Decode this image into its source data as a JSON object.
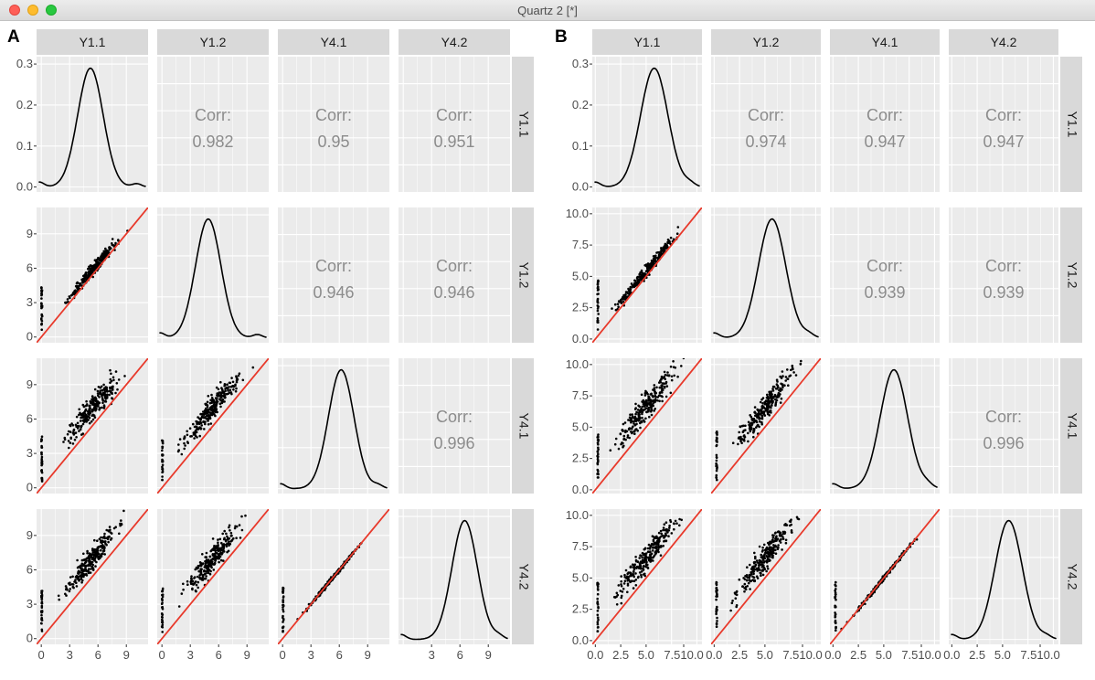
{
  "window": {
    "title": "Quartz 2 [*]"
  },
  "chart_data": [
    {
      "panel_label": "A",
      "type": "scatterplot-matrix",
      "variables": [
        "Y1.1",
        "Y1.2",
        "Y4.1",
        "Y4.2"
      ],
      "diag_ylim": [
        0,
        0.3
      ],
      "diag_yticks": [
        "0.0",
        "0.1",
        "0.2",
        "0.3"
      ],
      "axis_range": [
        -0.5,
        11.3
      ],
      "ticks": [
        0,
        3,
        6,
        9
      ],
      "diag4_ticks": [
        3,
        6,
        9
      ],
      "diag_peaks": [
        5.2,
        4.9,
        6.2,
        6.5
      ],
      "corr_label": "Corr:",
      "correlations": [
        {
          "row": 0,
          "col": 1,
          "value": "0.982"
        },
        {
          "row": 0,
          "col": 2,
          "value": "0.95"
        },
        {
          "row": 0,
          "col": 3,
          "value": "0.951"
        },
        {
          "row": 1,
          "col": 2,
          "value": "0.946"
        },
        {
          "row": 1,
          "col": 3,
          "value": "0.946"
        },
        {
          "row": 2,
          "col": 3,
          "value": "0.996"
        }
      ]
    },
    {
      "panel_label": "B",
      "type": "scatterplot-matrix",
      "variables": [
        "Y1.1",
        "Y1.2",
        "Y4.1",
        "Y4.2"
      ],
      "diag_ylim": [
        0,
        0.3
      ],
      "diag_yticks": [
        "0.0",
        "0.1",
        "0.2",
        "0.3"
      ],
      "axis_range": [
        -0.3,
        10.5
      ],
      "ticks": [
        "0.0",
        "2.5",
        "5.0",
        "7.5",
        "10.0"
      ],
      "bottom_ticks": [
        "0.0",
        "2.5",
        "5.0",
        "7.510.0"
      ],
      "diag_peaks": [
        5.8,
        5.7,
        6.0,
        5.6
      ],
      "corr_label": "Corr:",
      "correlations": [
        {
          "row": 0,
          "col": 1,
          "value": "0.974"
        },
        {
          "row": 0,
          "col": 2,
          "value": "0.947"
        },
        {
          "row": 0,
          "col": 3,
          "value": "0.947"
        },
        {
          "row": 1,
          "col": 2,
          "value": "0.939"
        },
        {
          "row": 1,
          "col": 3,
          "value": "0.939"
        },
        {
          "row": 2,
          "col": 3,
          "value": "0.996"
        }
      ]
    }
  ],
  "colors": {
    "panel_bg": "#ebebeb",
    "grid": "#ffffff",
    "strip": "#d9d9d9",
    "corr_text": "#8c8c8c",
    "points": "#000000",
    "identity_line": "#e8392b",
    "density": "#000000",
    "axis_text": "#4d4d4d"
  }
}
